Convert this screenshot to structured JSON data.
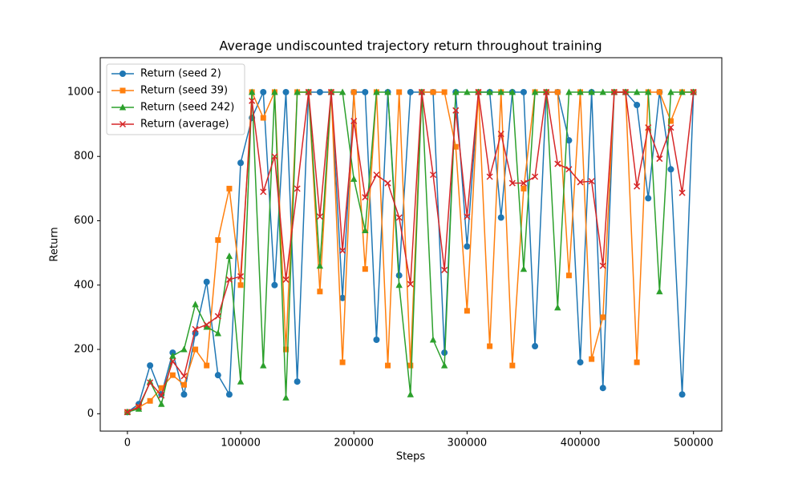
{
  "chart_data": {
    "type": "line",
    "title": "Average undiscounted trajectory return throughout training",
    "x_label": "Steps",
    "y_label": "Return",
    "x": [
      0,
      10000,
      20000,
      30000,
      40000,
      50000,
      60000,
      70000,
      80000,
      90000,
      100000,
      110000,
      120000,
      130000,
      140000,
      150000,
      160000,
      170000,
      180000,
      190000,
      200000,
      210000,
      220000,
      230000,
      240000,
      250000,
      260000,
      270000,
      280000,
      290000,
      300000,
      310000,
      320000,
      330000,
      340000,
      350000,
      360000,
      370000,
      380000,
      390000,
      400000,
      410000,
      420000,
      430000,
      440000,
      450000,
      460000,
      470000,
      480000,
      490000,
      500000
    ],
    "series": [
      {
        "name": "Return (seed 2)",
        "color": "#1f77b4",
        "marker": "circle",
        "values": [
          5,
          30,
          150,
          60,
          190,
          60,
          250,
          410,
          120,
          60,
          780,
          920,
          1000,
          400,
          1000,
          100,
          1000,
          1000,
          1000,
          360,
          1000,
          1000,
          230,
          1000,
          430,
          1000,
          1000,
          1000,
          190,
          1000,
          520,
          1000,
          1000,
          610,
          1000,
          1000,
          210,
          1000,
          1000,
          850,
          160,
          1000,
          80,
          1000,
          1000,
          960,
          670,
          1000,
          760,
          60,
          1000
        ]
      },
      {
        "name": "Return (seed 39)",
        "color": "#ff7f0e",
        "marker": "square",
        "values": [
          5,
          20,
          40,
          80,
          120,
          90,
          200,
          150,
          540,
          700,
          400,
          1000,
          920,
          1000,
          200,
          1000,
          1000,
          380,
          1000,
          160,
          1000,
          450,
          1000,
          150,
          1000,
          150,
          1000,
          1000,
          1000,
          830,
          320,
          1000,
          210,
          1000,
          150,
          700,
          1000,
          1000,
          1000,
          430,
          1000,
          170,
          300,
          1000,
          1000,
          160,
          1000,
          1000,
          910,
          1000,
          1000
        ]
      },
      {
        "name": "Return (seed 242)",
        "color": "#2ca02c",
        "marker": "triangle",
        "values": [
          5,
          15,
          100,
          30,
          180,
          200,
          340,
          270,
          250,
          490,
          100,
          1000,
          150,
          1000,
          50,
          1000,
          1000,
          460,
          1000,
          1000,
          730,
          570,
          1000,
          1000,
          400,
          60,
          1000,
          230,
          150,
          1000,
          1000,
          1000,
          1000,
          1000,
          1000,
          450,
          1000,
          1000,
          330,
          1000,
          1000,
          1000,
          1000,
          1000,
          1000,
          1000,
          1000,
          380,
          1000,
          1000,
          1000
        ]
      },
      {
        "name": "Return (average)",
        "color": "#d62728",
        "marker": "x",
        "values": [
          5,
          22,
          97,
          57,
          163,
          117,
          263,
          277,
          303,
          417,
          427,
          973,
          690,
          800,
          417,
          700,
          1000,
          613,
          1000,
          507,
          910,
          673,
          743,
          717,
          610,
          403,
          1000,
          743,
          447,
          943,
          613,
          1000,
          737,
          870,
          717,
          717,
          737,
          1000,
          777,
          760,
          720,
          723,
          460,
          1000,
          1000,
          707,
          890,
          793,
          890,
          687,
          1000
        ]
      }
    ],
    "xlim": [
      -24000,
      525000
    ],
    "xticks": [
      0,
      100000,
      200000,
      300000,
      400000,
      500000
    ],
    "ylim": [
      -54,
      1107
    ],
    "yticks": [
      0,
      200,
      400,
      600,
      800,
      1000
    ],
    "grid": false,
    "legend": "upper left"
  }
}
